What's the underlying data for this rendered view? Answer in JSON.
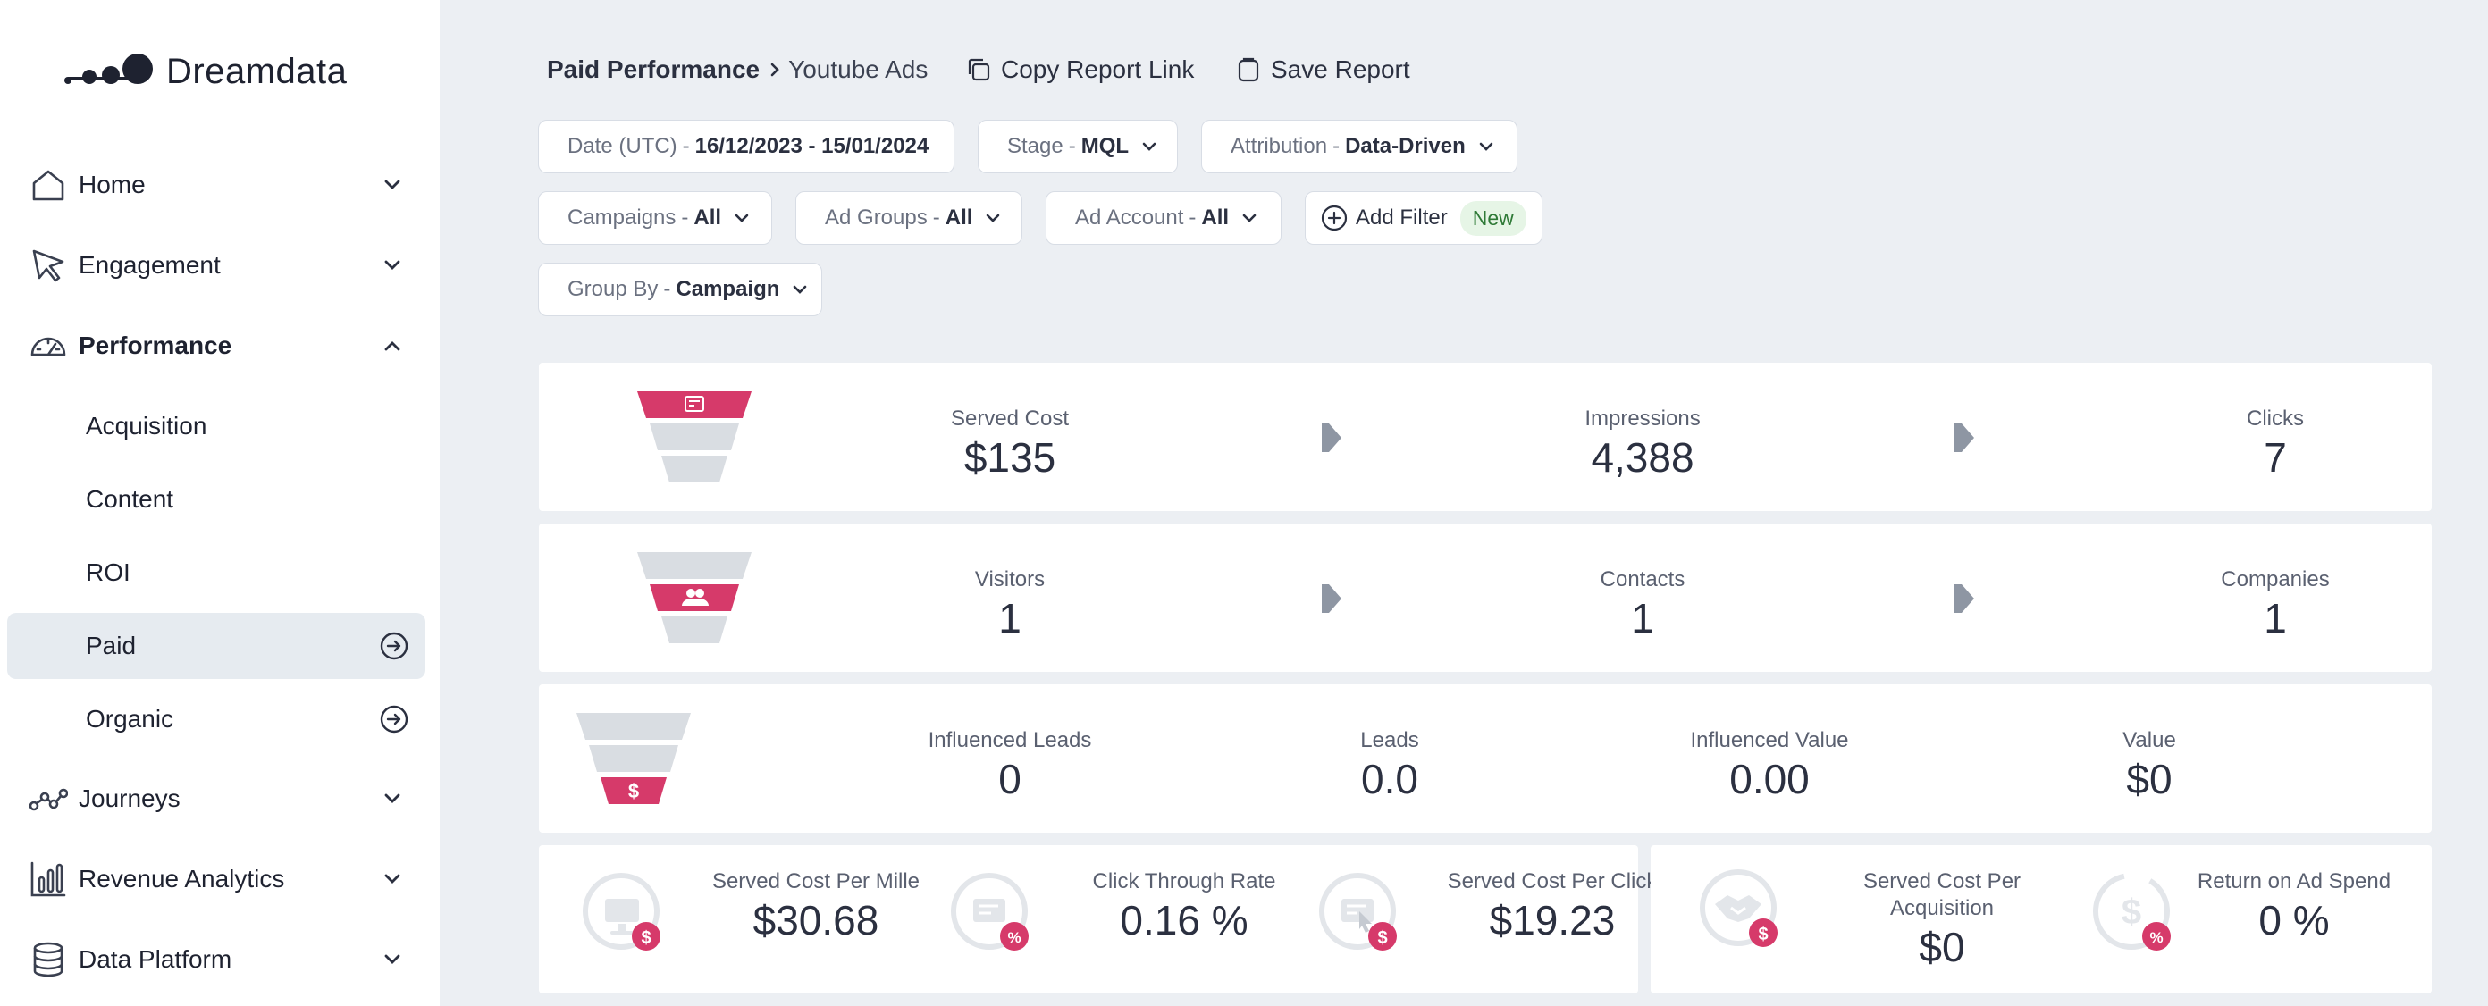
{
  "brand": {
    "name": "Dreamdata",
    "accent": "#d63a6a"
  },
  "sidebar": {
    "items": [
      {
        "label": "Home",
        "icon": "home-icon"
      },
      {
        "label": "Engagement",
        "icon": "cursor-icon"
      },
      {
        "label": "Performance",
        "icon": "gauge-icon",
        "expanded": true
      },
      {
        "label": "Journeys",
        "icon": "journey-icon"
      },
      {
        "label": "Revenue Analytics",
        "icon": "bars-icon"
      },
      {
        "label": "Data Platform",
        "icon": "database-icon"
      }
    ],
    "performance_sub": [
      {
        "label": "Acquisition"
      },
      {
        "label": "Content"
      },
      {
        "label": "ROI"
      },
      {
        "label": "Paid",
        "active": true
      },
      {
        "label": "Organic"
      }
    ]
  },
  "header": {
    "breadcrumb_parent": "Paid Performance",
    "breadcrumb_current": "Youtube Ads",
    "copy_link_label": "Copy Report Link",
    "save_label": "Save Report"
  },
  "filters": {
    "date": {
      "key": "Date (UTC)",
      "value": "16/12/2023 - 15/01/2024"
    },
    "stage": {
      "key": "Stage",
      "value": "MQL"
    },
    "attribution": {
      "key": "Attribution",
      "value": "Data-Driven"
    },
    "campaigns": {
      "key": "Campaigns",
      "value": "All"
    },
    "ad_groups": {
      "key": "Ad Groups",
      "value": "All"
    },
    "ad_account": {
      "key": "Ad Account",
      "value": "All"
    },
    "add_filter_label": "Add Filter",
    "new_badge": "New",
    "group_by": {
      "key": "Group By",
      "value": "Campaign"
    }
  },
  "funnel_rows": {
    "ads": [
      {
        "label": "Served Cost",
        "value": "$135"
      },
      {
        "label": "Impressions",
        "value": "4,388"
      },
      {
        "label": "Clicks",
        "value": "7"
      }
    ],
    "audience": [
      {
        "label": "Visitors",
        "value": "1"
      },
      {
        "label": "Contacts",
        "value": "1"
      },
      {
        "label": "Companies",
        "value": "1"
      }
    ],
    "revenue": [
      {
        "label": "Influenced Leads",
        "value": "0"
      },
      {
        "label": "Leads",
        "value": "0.0"
      },
      {
        "label": "Influenced Value",
        "value": "0.00"
      },
      {
        "label": "Value",
        "value": "$0"
      }
    ]
  },
  "kpis": [
    {
      "label": "Served Cost Per Mille",
      "value": "$30.68",
      "icon": "monitor-dollar-icon"
    },
    {
      "label": "Click Through Rate",
      "value": "0.16 %",
      "icon": "ad-percent-icon"
    },
    {
      "label": "Served Cost Per Click",
      "value": "$19.23",
      "icon": "ad-click-dollar-icon"
    },
    {
      "label": "Served Cost Per Acquisition",
      "value": "$0",
      "icon": "handshake-dollar-icon"
    },
    {
      "label": "Return on Ad Spend",
      "value": "0 %",
      "icon": "money-return-percent-icon"
    }
  ]
}
